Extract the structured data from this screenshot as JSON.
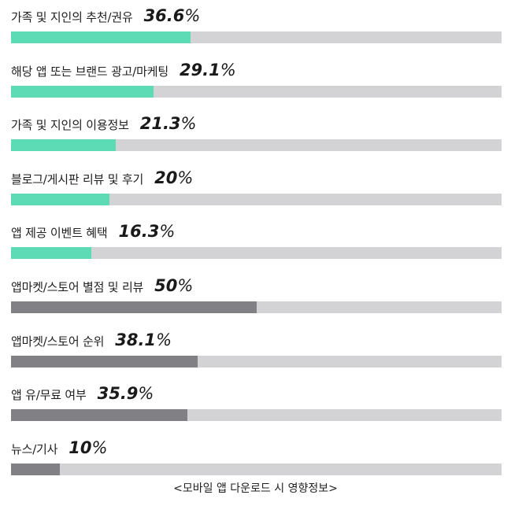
{
  "chart_data": {
    "type": "bar",
    "orientation": "horizontal",
    "caption": "<모바일 앱 다운로드 시 영향정보>",
    "categories": [
      "가족 및 지인의 추천/권유",
      "해당 앱 또는 브랜드 광고/마케팅",
      "가족 및 지인의 이용정보",
      "블로그/게시판 리뷰 및 후기",
      "앱 제공 이벤트 혜택",
      "앱마켓/스토어 별점 및 리뷰",
      "앱마켓/스토어 순위",
      "앱 유/무료 여부",
      "뉴스/기사"
    ],
    "values": [
      36.6,
      29.1,
      21.3,
      20,
      16.3,
      50,
      38.1,
      35.9,
      10
    ],
    "value_labels": [
      "36.6",
      "29.1",
      "21.3",
      "20",
      "16.3",
      "50",
      "38.1",
      "35.9",
      "10"
    ],
    "unit": "%",
    "xlim": [
      0,
      100
    ],
    "bar_colors": [
      "#5cdbb5",
      "#5cdbb5",
      "#5cdbb5",
      "#5cdbb5",
      "#5cdbb5",
      "#808085",
      "#808085",
      "#808085",
      "#808085"
    ],
    "track_color": "#d3d3d5",
    "grid": false,
    "legend": "none"
  }
}
